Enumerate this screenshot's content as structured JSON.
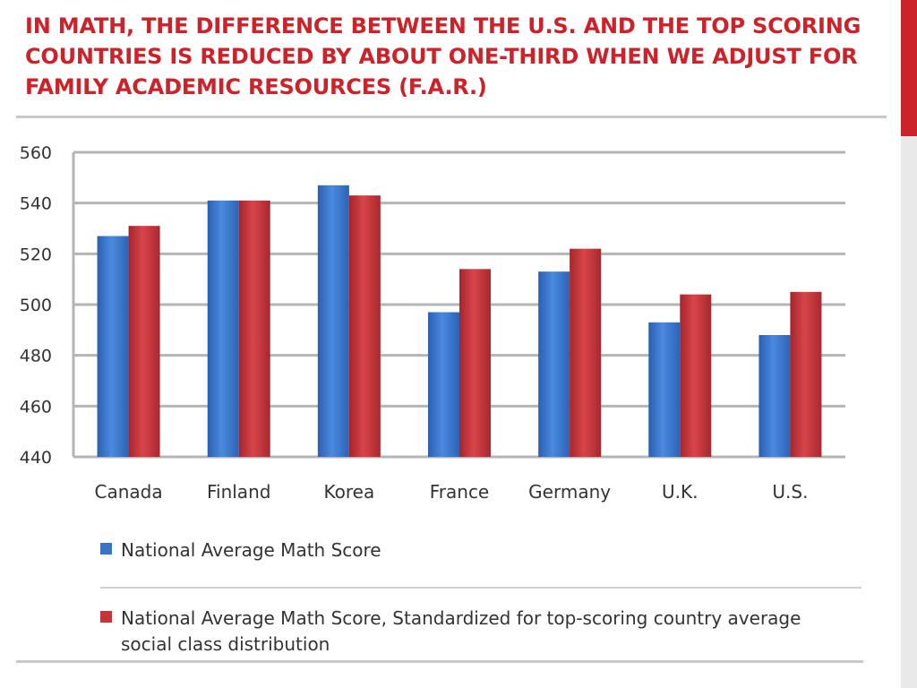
{
  "slide": {
    "title": "IN MATH, THE DIFFERENCE BETWEEN THE U.S. AND THE TOP SCORING COUNTRIES IS REDUCED BY ABOUT ONE-THIRD WHEN WE ADJUST FOR FAMILY ACADEMIC RESOURCES (F.A.R.)",
    "title_color": "#cc2229"
  },
  "chart_data": {
    "type": "bar",
    "title": "",
    "xlabel": "",
    "ylabel": "",
    "ylim": [
      440,
      560
    ],
    "yticks": [
      440,
      460,
      480,
      500,
      520,
      540,
      560
    ],
    "grid": true,
    "legend_position": "bottom",
    "categories": [
      "Canada",
      "Finland",
      "Korea",
      "France",
      "Germany",
      "U.K.",
      "U.S."
    ],
    "series": [
      {
        "name": "National Average Math Score",
        "color": "#3a73c7",
        "values": [
          527,
          541,
          547,
          497,
          513,
          493,
          488
        ]
      },
      {
        "name": "National Average Math Score, Standardized for top-scoring country average social class distribution",
        "color": "#c6343a",
        "values": [
          531,
          541,
          543,
          514,
          522,
          504,
          505
        ]
      }
    ]
  }
}
